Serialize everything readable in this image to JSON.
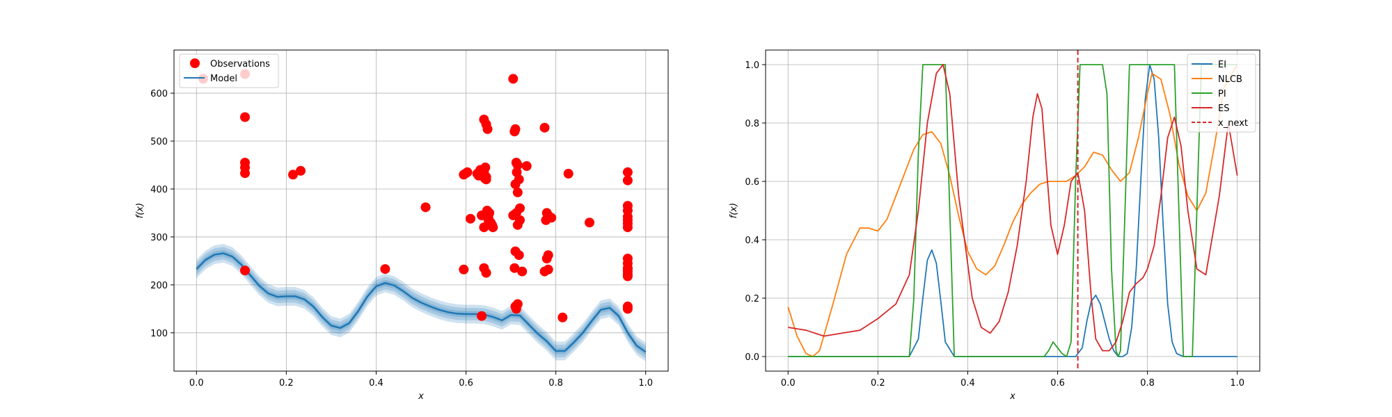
{
  "chart_data": [
    {
      "type": "scatter",
      "xlabel": "x",
      "ylabel": "f(x)",
      "xlim": [
        -0.05,
        1.05
      ],
      "ylim": [
        20,
        690
      ],
      "xticks": [
        0.0,
        0.2,
        0.4,
        0.6,
        0.8,
        1.0
      ],
      "xtick_labels": [
        "0.0",
        "0.2",
        "0.4",
        "0.6",
        "0.8",
        "1.0"
      ],
      "yticks": [
        100,
        200,
        300,
        400,
        500,
        600
      ],
      "ytick_labels": [
        "100",
        "200",
        "300",
        "400",
        "500",
        "600"
      ],
      "grid": true,
      "legend_position": "upper-left",
      "colors": {
        "observations": "#ff0000",
        "model": "#1f77b4"
      },
      "legend": [
        {
          "label": "Observations",
          "marker": "circle",
          "color": "#ff0000"
        },
        {
          "label": "Model",
          "marker": "line",
          "color": "#1f77b4"
        }
      ],
      "observations": {
        "name": "Observations",
        "x": [
          0.015,
          0.108,
          0.108,
          0.108,
          0.108,
          0.108,
          0.108,
          0.215,
          0.232,
          0.42,
          0.51,
          0.595,
          0.595,
          0.6,
          0.603,
          0.61,
          0.625,
          0.628,
          0.632,
          0.635,
          0.638,
          0.64,
          0.642,
          0.643,
          0.645,
          0.645,
          0.647,
          0.65,
          0.652,
          0.655,
          0.658,
          0.66,
          0.635,
          0.64,
          0.645,
          0.648,
          0.64,
          0.645,
          0.635,
          0.65,
          0.64,
          0.705,
          0.71,
          0.708,
          0.712,
          0.715,
          0.713,
          0.718,
          0.71,
          0.715,
          0.72,
          0.712,
          0.705,
          0.72,
          0.715,
          0.71,
          0.718,
          0.735,
          0.725,
          0.708,
          0.715,
          0.71,
          0.712,
          0.775,
          0.78,
          0.783,
          0.785,
          0.778,
          0.79,
          0.783,
          0.78,
          0.783,
          0.775,
          0.815,
          0.828,
          0.875,
          0.96,
          0.96,
          0.96,
          0.96,
          0.96,
          0.96,
          0.96,
          0.96,
          0.96,
          0.96,
          0.96,
          0.96,
          0.96,
          0.96,
          0.96,
          0.96,
          0.96
        ],
        "y": [
          630,
          640,
          550,
          455,
          445,
          433,
          230,
          430,
          438,
          233,
          362,
          232,
          430,
          433,
          435,
          338,
          432,
          428,
          440,
          438,
          430,
          435,
          422,
          445,
          425,
          420,
          355,
          340,
          350,
          330,
          325,
          320,
          135,
          545,
          535,
          525,
          235,
          225,
          345,
          335,
          320,
          630,
          525,
          520,
          455,
          450,
          435,
          420,
          410,
          393,
          360,
          350,
          345,
          335,
          325,
          270,
          262,
          448,
          228,
          235,
          160,
          155,
          150,
          528,
          350,
          345,
          340,
          335,
          340,
          262,
          255,
          232,
          228,
          132,
          432,
          330,
          233,
          435,
          418,
          365,
          355,
          342,
          335,
          328,
          320,
          255,
          245,
          235,
          228,
          222,
          218,
          155,
          150
        ]
      },
      "model": {
        "name": "Model",
        "x": [
          0.0,
          0.02,
          0.04,
          0.06,
          0.08,
          0.1,
          0.12,
          0.14,
          0.16,
          0.18,
          0.2,
          0.22,
          0.24,
          0.26,
          0.28,
          0.3,
          0.32,
          0.34,
          0.36,
          0.38,
          0.4,
          0.42,
          0.44,
          0.46,
          0.48,
          0.5,
          0.52,
          0.54,
          0.56,
          0.58,
          0.6,
          0.62,
          0.64,
          0.66,
          0.68,
          0.7,
          0.72,
          0.74,
          0.76,
          0.78,
          0.8,
          0.82,
          0.84,
          0.86,
          0.88,
          0.9,
          0.92,
          0.94,
          0.96,
          0.98,
          1.0
        ],
        "mean": [
          233,
          252,
          263,
          266,
          259,
          242,
          220,
          198,
          182,
          175,
          176,
          176,
          170,
          155,
          133,
          115,
          110,
          120,
          145,
          175,
          197,
          204,
          199,
          187,
          173,
          163,
          155,
          148,
          143,
          140,
          139,
          139,
          138,
          133,
          126,
          137,
          136,
          117,
          98,
          82,
          62,
          62,
          80,
          100,
          125,
          148,
          152,
          135,
          100,
          73,
          60
        ],
        "band": 13
      }
    },
    {
      "type": "line",
      "xlabel": "x",
      "ylabel": "f(x)",
      "xlim": [
        -0.05,
        1.05
      ],
      "ylim": [
        -0.05,
        1.05
      ],
      "xticks": [
        0.0,
        0.2,
        0.4,
        0.6,
        0.8,
        1.0
      ],
      "xtick_labels": [
        "0.0",
        "0.2",
        "0.4",
        "0.6",
        "0.8",
        "1.0"
      ],
      "yticks": [
        0.0,
        0.2,
        0.4,
        0.6,
        0.8,
        1.0
      ],
      "ytick_labels": [
        "0.0",
        "0.2",
        "0.4",
        "0.6",
        "0.8",
        "1.0"
      ],
      "grid": true,
      "legend_position": "upper-right",
      "x_next": {
        "name": "x_next",
        "x": 0.645,
        "color": "#d62728",
        "style": "dashed"
      },
      "series": [
        {
          "name": "EI",
          "color": "#1f77b4",
          "x": [
            0.0,
            0.27,
            0.29,
            0.3,
            0.31,
            0.32,
            0.33,
            0.34,
            0.35,
            0.37,
            0.62,
            0.64,
            0.655,
            0.665,
            0.675,
            0.685,
            0.695,
            0.705,
            0.715,
            0.725,
            0.735,
            0.745,
            0.755,
            0.765,
            0.775,
            0.785,
            0.795,
            0.805,
            0.815,
            0.825,
            0.835,
            0.845,
            0.855,
            0.865,
            0.88,
            1.0
          ],
          "y": [
            0.0,
            0.0,
            0.06,
            0.2,
            0.33,
            0.365,
            0.32,
            0.19,
            0.05,
            0.0,
            0.0,
            0.0,
            0.03,
            0.12,
            0.19,
            0.21,
            0.18,
            0.12,
            0.06,
            0.02,
            0.0,
            0.0,
            0.01,
            0.1,
            0.3,
            0.6,
            0.88,
            1.0,
            0.95,
            0.75,
            0.45,
            0.18,
            0.05,
            0.01,
            0.0,
            0.0
          ]
        },
        {
          "name": "NLCB",
          "color": "#ff7f0e",
          "x": [
            0.0,
            0.02,
            0.04,
            0.055,
            0.07,
            0.1,
            0.13,
            0.16,
            0.18,
            0.2,
            0.22,
            0.24,
            0.26,
            0.28,
            0.3,
            0.32,
            0.34,
            0.36,
            0.38,
            0.4,
            0.42,
            0.44,
            0.46,
            0.48,
            0.5,
            0.52,
            0.54,
            0.56,
            0.58,
            0.6,
            0.62,
            0.64,
            0.66,
            0.68,
            0.7,
            0.72,
            0.74,
            0.76,
            0.78,
            0.8,
            0.81,
            0.83,
            0.85,
            0.87,
            0.89,
            0.91,
            0.93,
            0.95,
            0.97,
            1.0
          ],
          "y": [
            0.17,
            0.07,
            0.01,
            0.0,
            0.02,
            0.18,
            0.35,
            0.44,
            0.44,
            0.43,
            0.47,
            0.55,
            0.63,
            0.71,
            0.76,
            0.77,
            0.73,
            0.62,
            0.48,
            0.36,
            0.3,
            0.28,
            0.31,
            0.38,
            0.46,
            0.52,
            0.56,
            0.59,
            0.6,
            0.6,
            0.6,
            0.62,
            0.65,
            0.7,
            0.69,
            0.64,
            0.6,
            0.63,
            0.75,
            0.9,
            0.97,
            0.95,
            0.83,
            0.66,
            0.55,
            0.5,
            0.56,
            0.73,
            0.92,
            1.0
          ]
        },
        {
          "name": "PI",
          "color": "#2ca02c",
          "x": [
            0.0,
            0.27,
            0.28,
            0.29,
            0.3,
            0.34,
            0.35,
            0.36,
            0.37,
            0.57,
            0.58,
            0.59,
            0.6,
            0.61,
            0.62,
            0.63,
            0.64,
            0.65,
            0.66,
            0.67,
            0.68,
            0.69,
            0.7,
            0.71,
            0.72,
            0.73,
            0.735,
            0.74,
            0.75,
            0.76,
            0.77,
            0.78,
            0.86,
            0.87,
            0.88,
            0.9,
            0.91,
            0.92,
            0.93,
            1.0
          ],
          "y": [
            0.0,
            0.0,
            0.2,
            0.7,
            1.0,
            1.0,
            1.0,
            0.5,
            0.0,
            0.0,
            0.02,
            0.05,
            0.03,
            0.01,
            0.0,
            0.05,
            0.6,
            1.0,
            1.0,
            1.0,
            1.0,
            1.0,
            1.0,
            0.9,
            0.3,
            0.02,
            0.0,
            0.02,
            0.5,
            1.0,
            1.0,
            1.0,
            1.0,
            0.5,
            0.0,
            0.0,
            0.5,
            1.0,
            1.0,
            1.0
          ]
        },
        {
          "name": "ES",
          "color": "#d62728",
          "x": [
            0.0,
            0.04,
            0.08,
            0.12,
            0.16,
            0.2,
            0.24,
            0.27,
            0.29,
            0.31,
            0.33,
            0.345,
            0.36,
            0.38,
            0.41,
            0.43,
            0.45,
            0.47,
            0.49,
            0.51,
            0.53,
            0.545,
            0.555,
            0.565,
            0.575,
            0.585,
            0.6,
            0.615,
            0.63,
            0.645,
            0.66,
            0.675,
            0.685,
            0.7,
            0.715,
            0.73,
            0.745,
            0.76,
            0.775,
            0.79,
            0.8,
            0.815,
            0.83,
            0.845,
            0.86,
            0.875,
            0.89,
            0.91,
            0.93,
            0.96,
            0.98,
            1.0
          ],
          "y": [
            0.1,
            0.09,
            0.07,
            0.08,
            0.09,
            0.13,
            0.18,
            0.28,
            0.5,
            0.8,
            0.97,
            1.0,
            0.9,
            0.55,
            0.2,
            0.1,
            0.08,
            0.12,
            0.22,
            0.38,
            0.6,
            0.82,
            0.9,
            0.85,
            0.65,
            0.45,
            0.35,
            0.45,
            0.6,
            0.63,
            0.5,
            0.2,
            0.06,
            0.02,
            0.02,
            0.05,
            0.12,
            0.22,
            0.25,
            0.27,
            0.3,
            0.38,
            0.55,
            0.75,
            0.82,
            0.72,
            0.5,
            0.3,
            0.28,
            0.55,
            0.8,
            0.62
          ]
        }
      ],
      "legend": [
        {
          "label": "EI",
          "color": "#1f77b4",
          "style": "solid"
        },
        {
          "label": "NLCB",
          "color": "#ff7f0e",
          "style": "solid"
        },
        {
          "label": "PI",
          "color": "#2ca02c",
          "style": "solid"
        },
        {
          "label": "ES",
          "color": "#d62728",
          "style": "solid"
        },
        {
          "label": "x_next",
          "color": "#d62728",
          "style": "dashed"
        }
      ]
    }
  ]
}
